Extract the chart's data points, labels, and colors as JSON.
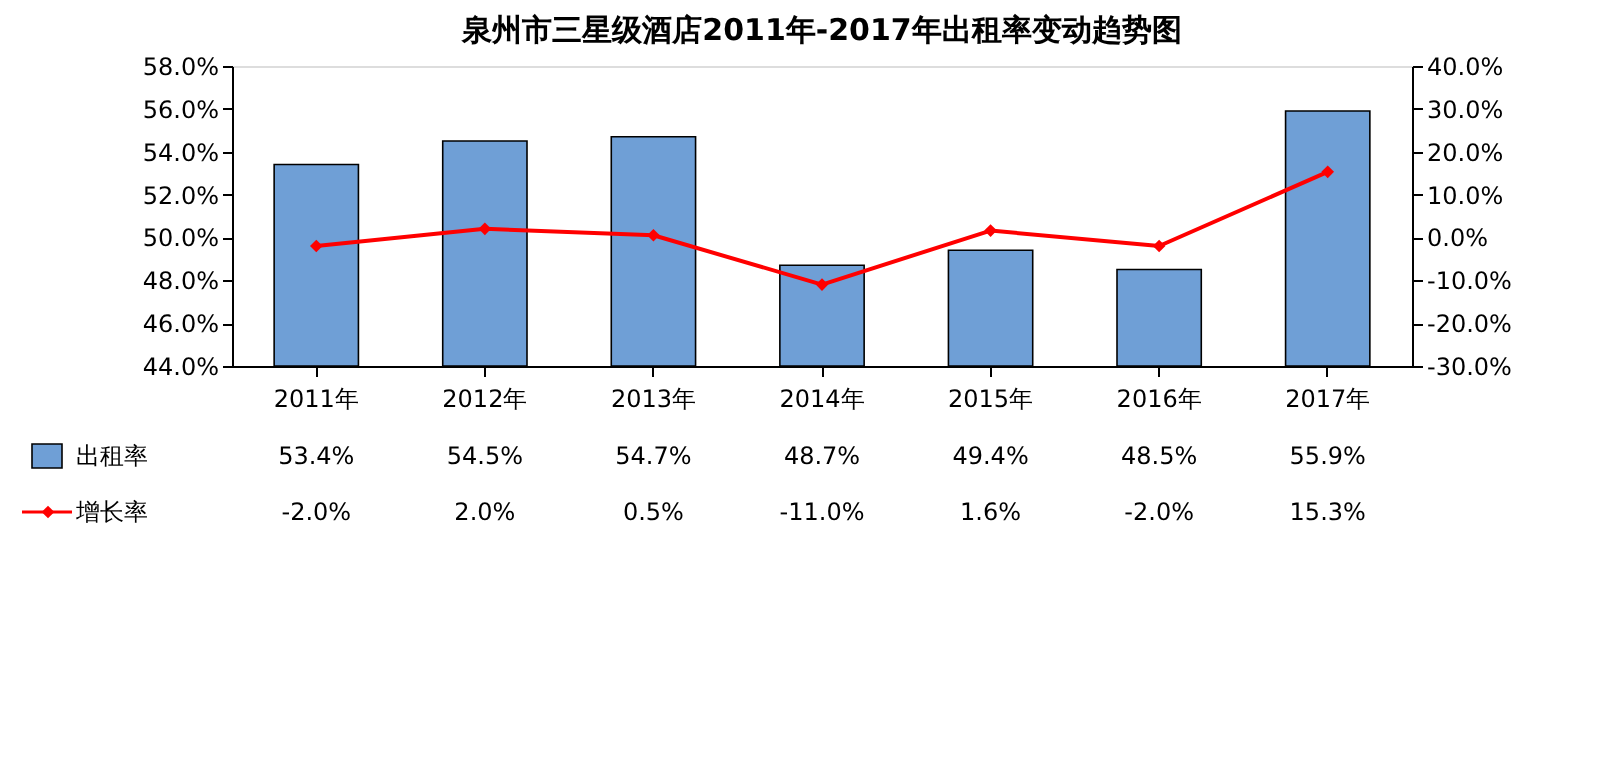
{
  "chart_data": {
    "type": "bar",
    "title": "泉州市三星级酒店2011年-2017年出租率变动趋势图",
    "categories": [
      "2011年",
      "2012年",
      "2013年",
      "2014年",
      "2015年",
      "2016年",
      "2017年"
    ],
    "series": [
      {
        "name": "出租率",
        "color": "#6f9fd6",
        "values": [
          53.4,
          54.5,
          54.7,
          48.7,
          49.4,
          48.5,
          55.9
        ],
        "value_labels": [
          "53.4%",
          "54.5%",
          "54.7%",
          "48.7%",
          "49.4%",
          "48.5%",
          "55.9%"
        ]
      },
      {
        "name": "增长率",
        "type": "line",
        "axis": "y2",
        "color": "#ff0000",
        "marker": "diamond",
        "line_style": "solid",
        "values": [
          -2.0,
          2.0,
          0.5,
          -11.0,
          1.6,
          -2.0,
          15.3
        ],
        "value_labels": [
          "-2.0%",
          "2.0%",
          "0.5%",
          "-11.0%",
          "1.6%",
          "-2.0%",
          "15.3%"
        ]
      }
    ],
    "ylim": [
      44,
      58
    ],
    "yticks": [
      {
        "value": 44,
        "label": "44.0%"
      },
      {
        "value": 46,
        "label": "46.0%"
      },
      {
        "value": 48,
        "label": "48.0%"
      },
      {
        "value": 50,
        "label": "50.0%"
      },
      {
        "value": 52,
        "label": "52.0%"
      },
      {
        "value": 54,
        "label": "54.0%"
      },
      {
        "value": 56,
        "label": "56.0%"
      },
      {
        "value": 58,
        "label": "58.0%"
      }
    ],
    "y2lim": [
      -30,
      40
    ],
    "y2ticks": [
      {
        "value": -30,
        "label": "-30.0%"
      },
      {
        "value": -20,
        "label": "-20.0%"
      },
      {
        "value": -10,
        "label": "-10.0%"
      },
      {
        "value": 0,
        "label": "0.0%"
      },
      {
        "value": 10,
        "label": "10.0%"
      },
      {
        "value": 20,
        "label": "20.0%"
      },
      {
        "value": 30,
        "label": "30.0%"
      },
      {
        "value": 40,
        "label": "40.0%"
      }
    ],
    "legend": "bottom"
  }
}
